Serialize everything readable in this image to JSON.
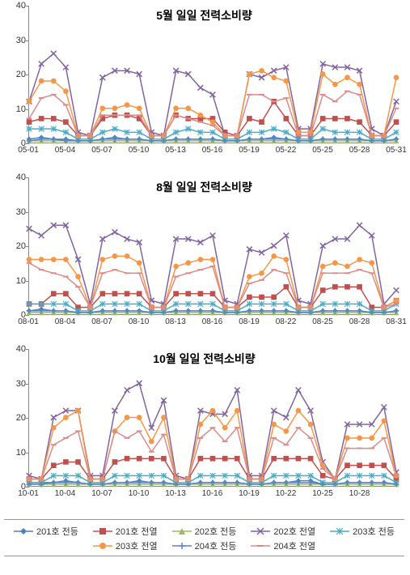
{
  "background_color": "#ffffff",
  "axis_color": "#888888",
  "tick_font_color": "#333333",
  "tick_fontsize": 11,
  "title_fontsize": 14,
  "title_fontweight": "bold",
  "ylim": [
    0,
    40
  ],
  "ytick_step": 10,
  "yticks": [
    0,
    10,
    20,
    30,
    40
  ],
  "n_points": 31,
  "x_label_indices": [
    0,
    3,
    6,
    9,
    12,
    15,
    18,
    21,
    24,
    27,
    30
  ],
  "line_width": 1.5,
  "marker_size": 4,
  "series_style": [
    {
      "key": "s1",
      "label": "201호 전등",
      "color": "#4f81bd",
      "marker": "diamond"
    },
    {
      "key": "s2",
      "label": "201호 전열",
      "color": "#c0504d",
      "marker": "square"
    },
    {
      "key": "s3",
      "label": "202호 전등",
      "color": "#9bbb59",
      "marker": "triangle"
    },
    {
      "key": "s4",
      "label": "202호 전열",
      "color": "#8064a2",
      "marker": "x"
    },
    {
      "key": "s5",
      "label": "203호 전등",
      "color": "#4bacc6",
      "marker": "star"
    },
    {
      "key": "s6",
      "label": "203호 전열",
      "color": "#f79646",
      "marker": "circle"
    },
    {
      "key": "s7",
      "label": "204호 전등",
      "color": "#5a86c4",
      "marker": "plus"
    },
    {
      "key": "s8",
      "label": "204호 전열",
      "color": "#d98c8a",
      "marker": "dash"
    }
  ],
  "charts": [
    {
      "id": "may",
      "title": "5월 일일 전력소비량",
      "x_labels": [
        "05-01",
        "05-04",
        "05-07",
        "05-10",
        "05-13",
        "05-16",
        "05-19",
        "05-22",
        "05-25",
        "05-28",
        "05-31"
      ],
      "series": {
        "s1": [
          1,
          1.5,
          1,
          1,
          0.5,
          0.5,
          1,
          1.5,
          1,
          1,
          0.5,
          0.5,
          1,
          1,
          1,
          1,
          0.5,
          0.5,
          1,
          1,
          1.5,
          1,
          0.5,
          0.5,
          1,
          1,
          1,
          1,
          0.5,
          0.5,
          1
        ],
        "s2": [
          6,
          7,
          7,
          6,
          2,
          2,
          7,
          8,
          8,
          7,
          2,
          2,
          8,
          7,
          7,
          7,
          3,
          2,
          7,
          6,
          12,
          7,
          2,
          2,
          7,
          7,
          7,
          6,
          2,
          2,
          6
        ],
        "s3": [
          0.5,
          0.5,
          0.5,
          0.5,
          0.5,
          0.5,
          0.5,
          0.5,
          0.5,
          0.5,
          0.5,
          0.5,
          0.5,
          0.5,
          0.5,
          0.5,
          0.5,
          0.5,
          0.5,
          0.5,
          0.5,
          0.5,
          0.5,
          0.5,
          0.5,
          0.5,
          0.5,
          0.5,
          0.5,
          0.5,
          0.5
        ],
        "s4": [
          12,
          23,
          26,
          22,
          3,
          2,
          19,
          21,
          21,
          20,
          3,
          2,
          21,
          20,
          16,
          14,
          2,
          2,
          20,
          19,
          21,
          22,
          4,
          4,
          23,
          22,
          22,
          21,
          4,
          2,
          12
        ],
        "s5": [
          4,
          4,
          4,
          3,
          1,
          1,
          3,
          4,
          3,
          3,
          1,
          1,
          3,
          4,
          3,
          3,
          1,
          1,
          3,
          3,
          4,
          3,
          1,
          1,
          4,
          3,
          3,
          3,
          1,
          1,
          3
        ],
        "s6": [
          12,
          18,
          18,
          15,
          2,
          2,
          10,
          10,
          11,
          10,
          2,
          2,
          10,
          10,
          8,
          6,
          2,
          2,
          20,
          21,
          19,
          18,
          3,
          3,
          20,
          17,
          19,
          17,
          2,
          2,
          19
        ],
        "s7": [
          0.5,
          1,
          1,
          0.5,
          0.5,
          0.5,
          1,
          1,
          1,
          1,
          0.5,
          0.5,
          1,
          1,
          1,
          1,
          0.5,
          0.5,
          1,
          1,
          1,
          1,
          0.5,
          0.5,
          1,
          1,
          1,
          1,
          0.5,
          0.5,
          1
        ],
        "s8": [
          7,
          13,
          14,
          11,
          2,
          2,
          8,
          8,
          8,
          8,
          2,
          2,
          8,
          7,
          6,
          5,
          2,
          2,
          14,
          14,
          12,
          13,
          2,
          2,
          14,
          12,
          15,
          14,
          2,
          2,
          10
        ]
      }
    },
    {
      "id": "aug",
      "title": "8월 일일 전력소비량",
      "x_labels": [
        "08-01",
        "08-04",
        "08-07",
        "08-10",
        "08-13",
        "08-16",
        "08-19",
        "08-22",
        "08-25",
        "08-28",
        "08-31"
      ],
      "series": {
        "s1": [
          1,
          1.5,
          1,
          1,
          0.5,
          0.5,
          1,
          1,
          1,
          1,
          0.5,
          0.5,
          1,
          1,
          1,
          1,
          0.5,
          0.5,
          1,
          1,
          1,
          1,
          0.5,
          0.5,
          1,
          1,
          1,
          1,
          0.5,
          0.5,
          1
        ],
        "s2": [
          3,
          3,
          6,
          6,
          2,
          2,
          6,
          6,
          6,
          6,
          2,
          2,
          6,
          6,
          6,
          6,
          2,
          2,
          5,
          5,
          5,
          8,
          2,
          2,
          7,
          8,
          8,
          8,
          2,
          2,
          4
        ],
        "s3": [
          0.5,
          0.5,
          0.5,
          0.5,
          0.5,
          0.5,
          0.5,
          0.5,
          0.5,
          0.5,
          0.5,
          0.5,
          0.5,
          0.5,
          0.5,
          0.5,
          0.5,
          0.5,
          0.5,
          0.5,
          0.5,
          0.5,
          0.5,
          0.5,
          0.5,
          0.5,
          0.5,
          0.5,
          0.5,
          0.5,
          0.5
        ],
        "s4": [
          25,
          23,
          26,
          26,
          16,
          3,
          22,
          24,
          22,
          21,
          4,
          3,
          22,
          22,
          21,
          23,
          4,
          3,
          19,
          18,
          20,
          23,
          4,
          3,
          20,
          22,
          22,
          26,
          23,
          3,
          7
        ],
        "s5": [
          3,
          3,
          3,
          3,
          1,
          1,
          3,
          3,
          3,
          3,
          1,
          1,
          3,
          3,
          3,
          3,
          1,
          1,
          3,
          3,
          3,
          3,
          1,
          1,
          3,
          3,
          3,
          3,
          1,
          1,
          3
        ],
        "s6": [
          16,
          16,
          16,
          16,
          11,
          2,
          16,
          17,
          17,
          15,
          2,
          2,
          14,
          15,
          16,
          16,
          2,
          2,
          11,
          12,
          17,
          16,
          2,
          2,
          14,
          15,
          14,
          16,
          15,
          2,
          4
        ],
        "s7": [
          1,
          1,
          1,
          1,
          0.5,
          0.5,
          1,
          1,
          1,
          1,
          0.5,
          0.5,
          1,
          1,
          1,
          1,
          0.5,
          0.5,
          1,
          1,
          1,
          1,
          0.5,
          0.5,
          1,
          1,
          1,
          1,
          0.5,
          0.5,
          1
        ],
        "s8": [
          15,
          13,
          12,
          11,
          8,
          2,
          12,
          13,
          12,
          12,
          2,
          2,
          11,
          12,
          13,
          14,
          2,
          2,
          9,
          10,
          13,
          12,
          2,
          2,
          12,
          12,
          12,
          13,
          12,
          2,
          3
        ]
      }
    },
    {
      "id": "oct",
      "title": "10월 일일 전력소비량",
      "x_labels": [
        "10-01",
        "10-04",
        "10-07",
        "10-10",
        "10-13",
        "10-16",
        "10-19",
        "10-22",
        "10-25",
        "10-28",
        ""
      ],
      "series": {
        "s1": [
          1,
          1,
          1,
          1.5,
          1,
          0.5,
          0.5,
          1,
          1,
          1.5,
          1,
          1,
          0.5,
          0.5,
          1,
          1,
          1,
          1,
          0.5,
          0.5,
          1,
          1,
          1.5,
          1.5,
          0.5,
          0.5,
          1,
          1,
          1,
          1,
          0.5
        ],
        "s2": [
          2,
          2,
          6,
          7,
          7,
          2,
          2,
          7,
          8,
          8,
          8,
          8,
          2,
          2,
          8,
          8,
          8,
          8,
          2,
          2,
          8,
          8,
          8,
          8,
          3,
          2,
          6,
          6,
          6,
          6,
          2
        ],
        "s3": [
          0.5,
          0.5,
          0.5,
          0.5,
          0.5,
          0.5,
          0.5,
          0.5,
          0.5,
          0.5,
          0.5,
          0.5,
          0.5,
          0.5,
          0.5,
          0.5,
          0.5,
          0.5,
          0.5,
          0.5,
          0.5,
          0.5,
          0.5,
          0.5,
          0.5,
          0.5,
          0.5,
          0.5,
          0.5,
          0.5,
          0.5
        ],
        "s4": [
          3,
          2,
          20,
          22,
          22,
          3,
          3,
          22,
          28,
          30,
          17,
          25,
          3,
          2,
          22,
          21,
          21,
          28,
          3,
          3,
          22,
          20,
          28,
          22,
          7,
          2,
          18,
          18,
          18,
          23,
          4
        ],
        "s5": [
          1,
          1,
          3,
          3,
          3,
          1,
          1,
          3,
          3,
          3,
          3,
          3,
          1,
          1,
          3,
          3,
          3,
          3,
          1,
          1,
          3,
          3,
          3,
          3,
          1,
          1,
          3,
          3,
          3,
          3,
          1
        ],
        "s6": [
          2,
          2,
          17,
          20,
          22,
          2,
          2,
          16,
          20,
          20,
          13,
          20,
          2,
          2,
          18,
          22,
          17,
          22,
          2,
          2,
          18,
          16,
          22,
          18,
          6,
          2,
          14,
          14,
          14,
          19,
          3
        ],
        "s7": [
          0.5,
          0.5,
          1,
          1,
          1,
          0.5,
          0.5,
          1,
          1,
          1,
          1,
          1,
          0.5,
          0.5,
          1,
          1,
          1,
          1,
          0.5,
          0.5,
          1,
          1,
          1,
          1,
          0.5,
          0.5,
          1,
          1,
          1,
          1,
          0.5
        ],
        "s8": [
          2,
          2,
          12,
          14,
          16,
          2,
          2,
          16,
          14,
          16,
          10,
          15,
          2,
          2,
          14,
          17,
          13,
          17,
          2,
          2,
          14,
          12,
          17,
          14,
          5,
          2,
          11,
          11,
          11,
          14,
          3
        ]
      }
    }
  ]
}
